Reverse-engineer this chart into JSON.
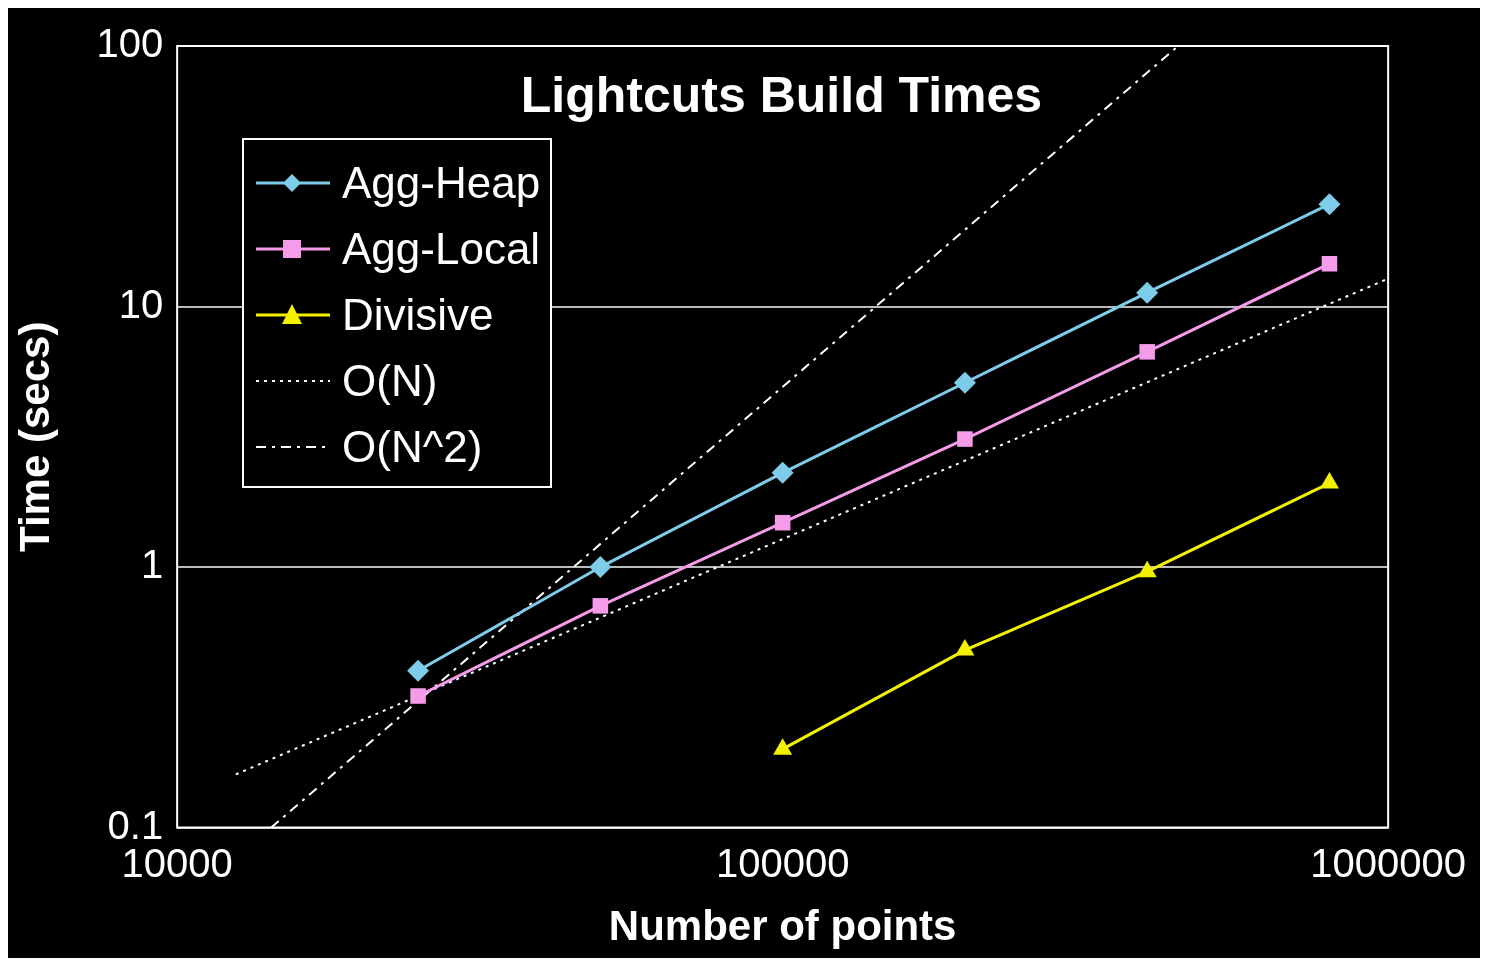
{
  "chart_data": {
    "type": "line",
    "title": "Lightcuts Build Times",
    "xlabel": "Number of points",
    "ylabel": "Time (secs)",
    "log": "xy",
    "xlim": [
      10000,
      1000000
    ],
    "xticks": [
      10000,
      100000,
      1000000
    ],
    "ylim": [
      0.1,
      100
    ],
    "yticks": [
      0.1,
      1,
      10,
      100
    ],
    "grid": "y",
    "legend": "top left",
    "series": [
      {
        "name": "Agg-Heap",
        "color": "#7ecbea",
        "marker": "diamond",
        "line_style": "solid",
        "x": [
          25000,
          50000,
          100000,
          200000,
          400000,
          800000
        ],
        "values": [
          0.4,
          1.0,
          2.3,
          5.1,
          11.3,
          24.7
        ]
      },
      {
        "name": "Agg-Local",
        "color": "#f49be9",
        "marker": "square",
        "line_style": "solid",
        "x": [
          25000,
          50000,
          100000,
          200000,
          400000,
          800000
        ],
        "values": [
          0.32,
          0.71,
          1.48,
          3.1,
          6.7,
          14.6
        ]
      },
      {
        "name": "Divisive",
        "color": "#f2f200",
        "marker": "triangle",
        "line_style": "solid",
        "x": [
          100000,
          200000,
          400000,
          800000
        ],
        "values": [
          0.2,
          0.48,
          0.96,
          2.1
        ]
      },
      {
        "name": "O(N)",
        "color": "#ffffff",
        "marker": "none",
        "line_style": "dotted",
        "x": [
          12500,
          1000000
        ],
        "values": [
          0.16,
          12.8
        ]
      },
      {
        "name": "O(N^2)",
        "color": "#ffffff",
        "marker": "none",
        "line_style": "dashed",
        "x": [
          14300,
          450000
        ],
        "values": [
          0.1,
          100
        ]
      }
    ]
  }
}
